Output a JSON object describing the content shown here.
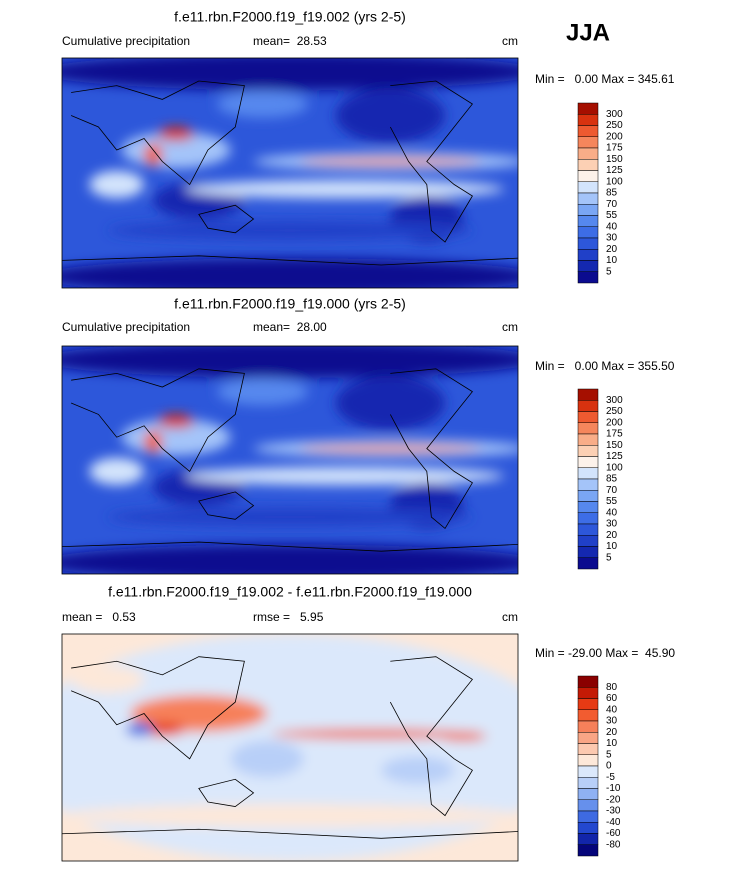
{
  "header": {
    "title": "JJA"
  },
  "panels": [
    {
      "title": "f.e11.rbn.F2000.f19_f19.002 (yrs 2-5)",
      "subtitle": "Cumulative precipitation",
      "mean": "mean=  28.53",
      "units": "cm",
      "range": "Min =   0.00 Max = 345.61",
      "colorbar": {
        "labels": [
          300,
          250,
          200,
          175,
          150,
          125,
          100,
          85,
          70,
          55,
          40,
          30,
          20,
          10,
          5
        ],
        "colors": [
          "#a50f00",
          "#d8320f",
          "#ee5a30",
          "#f5865c",
          "#f9ad88",
          "#fcd0b4",
          "#fdf2ea",
          "#d3e4fc",
          "#a4c4f9",
          "#7aa6f4",
          "#5688ee",
          "#3d6de6",
          "#2d57da",
          "#2040c8",
          "#1428b0",
          "#0b0b8f"
        ]
      }
    },
    {
      "title": "f.e11.rbn.F2000.f19_f19.000 (yrs 2-5)",
      "subtitle": "Cumulative precipitation",
      "mean": "mean=  28.00",
      "units": "cm",
      "range": "Min =   0.00 Max = 355.50",
      "colorbar": {
        "labels": [
          300,
          250,
          200,
          175,
          150,
          125,
          100,
          85,
          70,
          55,
          40,
          30,
          20,
          10,
          5
        ],
        "colors": [
          "#a50f00",
          "#d8320f",
          "#ee5a30",
          "#f5865c",
          "#f9ad88",
          "#fcd0b4",
          "#fdf2ea",
          "#d3e4fc",
          "#a4c4f9",
          "#7aa6f4",
          "#5688ee",
          "#3d6de6",
          "#2d57da",
          "#2040c8",
          "#1428b0",
          "#0b0b8f"
        ]
      }
    },
    {
      "title": "f.e11.rbn.F2000.f19_f19.002 - f.e11.rbn.F2000.f19_f19.000",
      "mean": "mean =   0.53",
      "rmse": "rmse =   5.95",
      "units": "cm",
      "range": "Min = -29.00 Max =  45.90",
      "colorbar": {
        "labels": [
          80,
          60,
          40,
          30,
          20,
          10,
          5,
          0,
          -5,
          -10,
          -20,
          -30,
          -40,
          -60,
          -80
        ],
        "colors": [
          "#8a0000",
          "#c41a05",
          "#e63a14",
          "#f25c30",
          "#f6805a",
          "#f9a585",
          "#fcc9b0",
          "#fde8d9",
          "#dbe8fb",
          "#b8cff8",
          "#8fb1f3",
          "#6690ec",
          "#3e6ae2",
          "#2348cf",
          "#1225aa",
          "#05057a"
        ]
      }
    }
  ]
}
